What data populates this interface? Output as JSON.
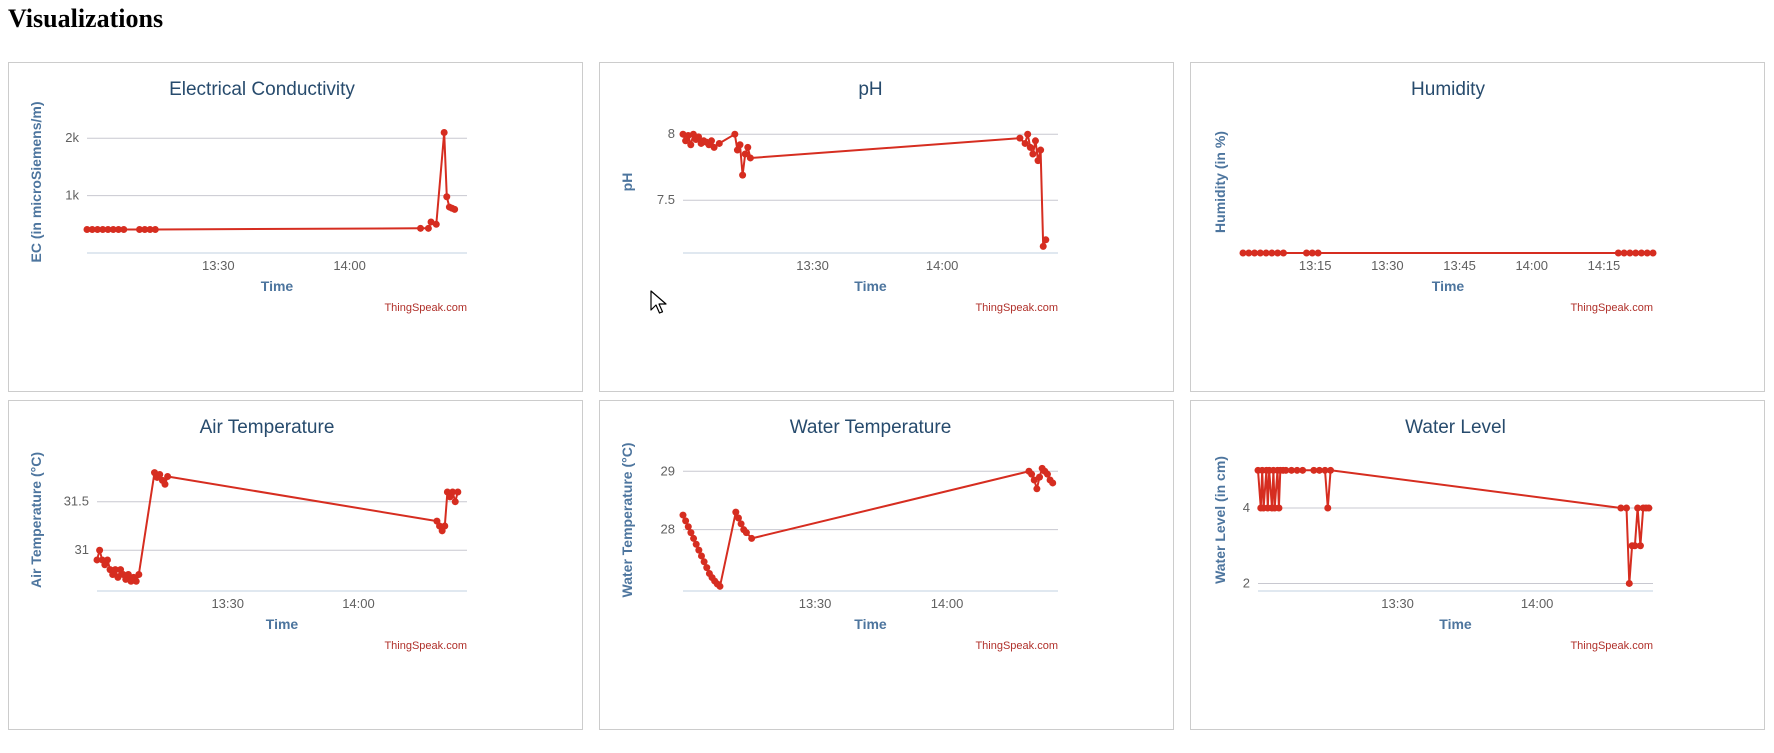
{
  "page": {
    "heading": "Visualizations"
  },
  "colors": {
    "series": "#d62d20",
    "grid": "#c8c8d0",
    "axis_title": "#4d759e",
    "title": "#274b6d",
    "credit": "#b0302a"
  },
  "charts": [
    {
      "title": "Electrical Conductivity",
      "ylabel": "EC (in microSiemens/m)",
      "xlabel": "Time",
      "credit": "ThingSpeak.com",
      "xticks": [
        "13:30",
        "14:00"
      ],
      "yticks": [
        "2k",
        "1k"
      ]
    },
    {
      "title": "pH",
      "ylabel": "pH",
      "xlabel": "Time",
      "credit": "ThingSpeak.com",
      "xticks": [
        "13:30",
        "14:00"
      ],
      "yticks": [
        "8",
        "7.5"
      ]
    },
    {
      "title": "Humidity",
      "ylabel": "Humidity (in %)",
      "xlabel": "Time",
      "credit": "ThingSpeak.com",
      "xticks": [
        "13:15",
        "13:30",
        "13:45",
        "14:00",
        "14:15"
      ],
      "yticks": []
    },
    {
      "title": "Air Temperature",
      "ylabel": "Air Temperature (°C)",
      "xlabel": "Time",
      "credit": "ThingSpeak.com",
      "xticks": [
        "13:30",
        "14:00"
      ],
      "yticks": [
        "31.5",
        "31"
      ]
    },
    {
      "title": "Water Temperature",
      "ylabel": "Water Temperature (°C)",
      "xlabel": "Time",
      "credit": "ThingSpeak.com",
      "xticks": [
        "13:30",
        "14:00"
      ],
      "yticks": [
        "29",
        "28"
      ]
    },
    {
      "title": "Water Level",
      "ylabel": "Water Level (in cm)",
      "xlabel": "Time",
      "credit": "ThingSpeak.com",
      "xticks": [
        "13:30",
        "14:00"
      ],
      "yticks": [
        "4",
        "2"
      ]
    }
  ],
  "chart_data": [
    {
      "type": "line",
      "title": "Electrical Conductivity",
      "xlabel": "Time",
      "ylabel": "EC (in microSiemens/m)",
      "xlim": [
        13.0,
        14.447
      ],
      "ylim": [
        0,
        2300
      ],
      "yticks": [
        1000,
        2000
      ],
      "ytick_labels": [
        "1k",
        "2k"
      ],
      "xticks": [
        13.5,
        14.0
      ],
      "series": [
        {
          "x": [
            13.0,
            13.02,
            13.04,
            13.06,
            13.08,
            13.1,
            13.12,
            13.14,
            13.2,
            13.22,
            13.24,
            13.26,
            14.27,
            14.3,
            14.31,
            14.33,
            14.36,
            14.37,
            14.38,
            14.39,
            14.4
          ],
          "y": [
            410,
            410,
            410,
            410,
            410,
            410,
            410,
            410,
            410,
            410,
            410,
            410,
            430,
            430,
            540,
            500,
            2100,
            980,
            800,
            780,
            760
          ]
        }
      ]
    },
    {
      "type": "line",
      "title": "pH",
      "xlabel": "Time",
      "ylabel": "pH",
      "xlim": [
        13.0,
        14.447
      ],
      "ylim": [
        7.1,
        8.1
      ],
      "yticks": [
        7.5,
        8
      ],
      "xticks": [
        13.5,
        14.0
      ],
      "series": [
        {
          "x": [
            13.0,
            13.01,
            13.02,
            13.03,
            13.04,
            13.05,
            13.06,
            13.07,
            13.08,
            13.09,
            13.1,
            13.11,
            13.12,
            13.14,
            13.2,
            13.21,
            13.22,
            13.23,
            13.24,
            13.25,
            13.26,
            14.3,
            14.32,
            14.33,
            14.34,
            14.35,
            14.36,
            14.37,
            14.38,
            14.39,
            14.4
          ],
          "y": [
            8.0,
            7.95,
            7.99,
            7.92,
            8.0,
            7.96,
            7.98,
            7.93,
            7.95,
            7.94,
            7.92,
            7.95,
            7.9,
            7.93,
            8.0,
            7.88,
            7.92,
            7.69,
            7.85,
            7.9,
            7.82,
            7.97,
            7.93,
            8.0,
            7.9,
            7.85,
            7.95,
            7.8,
            7.88,
            7.15,
            7.2
          ]
        }
      ]
    },
    {
      "type": "line",
      "title": "Humidity",
      "xlabel": "Time",
      "ylabel": "Humidity (in %)",
      "xlim": [
        13.0,
        14.42
      ],
      "ylim": [
        0,
        100
      ],
      "yticks": [],
      "xticks": [
        13.25,
        13.5,
        13.75,
        14.0,
        14.25
      ],
      "series": [
        {
          "x": [
            13.0,
            13.02,
            13.04,
            13.06,
            13.08,
            13.1,
            13.12,
            13.14,
            13.22,
            13.24,
            13.26,
            14.3,
            14.32,
            14.34,
            14.36,
            14.38,
            14.4,
            14.42
          ],
          "y": [
            0,
            0,
            0,
            0,
            0,
            0,
            0,
            0,
            0,
            0,
            0,
            0,
            0,
            0,
            0,
            0,
            0,
            0
          ]
        }
      ]
    },
    {
      "type": "line",
      "title": "Air Temperature",
      "xlabel": "Time",
      "ylabel": "Air Temperature (°C)",
      "xlim": [
        13.0,
        14.415
      ],
      "ylim": [
        30.58,
        31.94
      ],
      "yticks": [
        31,
        31.5
      ],
      "xticks": [
        13.5,
        14.0
      ],
      "series": [
        {
          "x": [
            13.0,
            13.01,
            13.02,
            13.03,
            13.04,
            13.05,
            13.06,
            13.07,
            13.08,
            13.09,
            13.1,
            13.11,
            13.12,
            13.13,
            13.14,
            13.15,
            13.16,
            13.22,
            13.23,
            13.24,
            13.25,
            13.26,
            13.27,
            14.3,
            14.31,
            14.32,
            14.33,
            14.34,
            14.35,
            14.36,
            14.37,
            14.38
          ],
          "y": [
            30.9,
            31.0,
            30.9,
            30.85,
            30.9,
            30.8,
            30.75,
            30.8,
            30.72,
            30.8,
            30.75,
            30.7,
            30.75,
            30.68,
            30.72,
            30.68,
            30.75,
            31.8,
            31.75,
            31.78,
            31.72,
            31.68,
            31.76,
            31.3,
            31.25,
            31.2,
            31.25,
            31.6,
            31.55,
            31.6,
            31.5,
            31.6
          ]
        }
      ]
    },
    {
      "type": "line",
      "title": "Water Temperature",
      "xlabel": "Time",
      "ylabel": "Water Temperature (°C)",
      "xlim": [
        13.0,
        14.42
      ],
      "ylim": [
        26.95,
        29.21
      ],
      "yticks": [
        28,
        29
      ],
      "xticks": [
        13.5,
        14.0
      ],
      "series": [
        {
          "x": [
            13.0,
            13.01,
            13.02,
            13.03,
            13.04,
            13.05,
            13.06,
            13.07,
            13.08,
            13.09,
            13.1,
            13.11,
            13.12,
            13.13,
            13.14,
            13.2,
            13.21,
            13.22,
            13.23,
            13.24,
            13.26,
            14.31,
            14.32,
            14.33,
            14.34,
            14.35,
            14.36,
            14.37,
            14.38,
            14.39,
            14.4
          ],
          "y": [
            28.25,
            28.15,
            28.05,
            27.95,
            27.85,
            27.75,
            27.65,
            27.55,
            27.45,
            27.35,
            27.25,
            27.18,
            27.12,
            27.07,
            27.03,
            28.3,
            28.2,
            28.1,
            28.0,
            27.95,
            27.85,
            29.0,
            28.95,
            28.85,
            28.7,
            28.9,
            29.05,
            29.0,
            28.95,
            28.85,
            28.8
          ]
        }
      ]
    },
    {
      "type": "line",
      "title": "Water Level",
      "xlabel": "Time",
      "ylabel": "Water Level (in cm)",
      "xlim": [
        13.0,
        14.415
      ],
      "ylim": [
        1.8,
        5.3
      ],
      "yticks": [
        2,
        4
      ],
      "xticks": [
        13.5,
        14.0
      ],
      "series": [
        {
          "x": [
            13.0,
            13.01,
            13.015,
            13.02,
            13.03,
            13.035,
            13.04,
            13.05,
            13.055,
            13.06,
            13.07,
            13.075,
            13.08,
            13.09,
            13.1,
            13.12,
            13.14,
            13.16,
            13.2,
            13.22,
            13.24,
            13.25,
            13.26,
            14.3,
            14.32,
            14.33,
            14.34,
            14.35,
            14.36,
            14.37,
            14.38,
            14.39,
            14.4
          ],
          "y": [
            5,
            4,
            5,
            4,
            5,
            4,
            5,
            4,
            5,
            4,
            5,
            4,
            5,
            5,
            5,
            5,
            5,
            5,
            5,
            5,
            5,
            4,
            5,
            4,
            4,
            2,
            3,
            3,
            4,
            3,
            4,
            4,
            4
          ]
        }
      ]
    }
  ]
}
